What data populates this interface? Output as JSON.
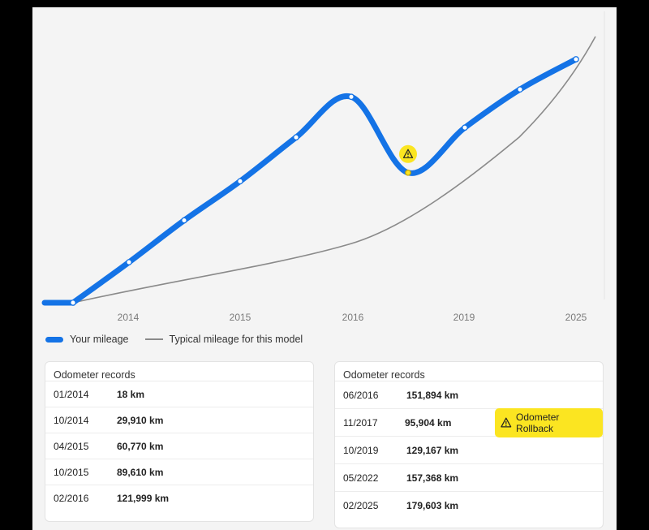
{
  "chart_data": {
    "type": "line",
    "x_ticks": [
      "2014",
      "2015",
      "2016",
      "2019",
      "2025"
    ],
    "series": [
      {
        "name": "Your mileage",
        "color": "#1473e6",
        "points": [
          {
            "date": "01/2014",
            "km": 18
          },
          {
            "date": "10/2014",
            "km": 29910
          },
          {
            "date": "04/2015",
            "km": 60770
          },
          {
            "date": "10/2015",
            "km": 89610
          },
          {
            "date": "02/2016",
            "km": 121999
          },
          {
            "date": "06/2016",
            "km": 151894
          },
          {
            "date": "11/2017",
            "km": 95904
          },
          {
            "date": "10/2019",
            "km": 129167
          },
          {
            "date": "05/2022",
            "km": 157368
          },
          {
            "date": "02/2025",
            "km": 179603
          }
        ]
      },
      {
        "name": "Typical mileage for this model",
        "color": "#8a8a8a"
      }
    ],
    "grid": false,
    "warning_icon": "warning-triangle-icon",
    "warning_color": "#fbe521"
  },
  "legend": {
    "your_mileage": "Your mileage",
    "typical": "Typical mileage for this model"
  },
  "records_left": {
    "title": "Odometer records",
    "rows": [
      {
        "date": "01/2014",
        "km": "18 km"
      },
      {
        "date": "10/2014",
        "km": "29,910 km"
      },
      {
        "date": "04/2015",
        "km": "60,770 km"
      },
      {
        "date": "10/2015",
        "km": "89,610 km"
      },
      {
        "date": "02/2016",
        "km": "121,999 km"
      }
    ]
  },
  "records_right": {
    "title": "Odometer records",
    "rows": [
      {
        "date": "06/2016",
        "km": "151,894 km"
      },
      {
        "date": "11/2017",
        "km": "95,904 km",
        "badge": "Odometer Rollback"
      },
      {
        "date": "10/2019",
        "km": "129,167 km"
      },
      {
        "date": "05/2022",
        "km": "157,368 km"
      },
      {
        "date": "02/2025",
        "km": "179,603 km"
      }
    ]
  }
}
